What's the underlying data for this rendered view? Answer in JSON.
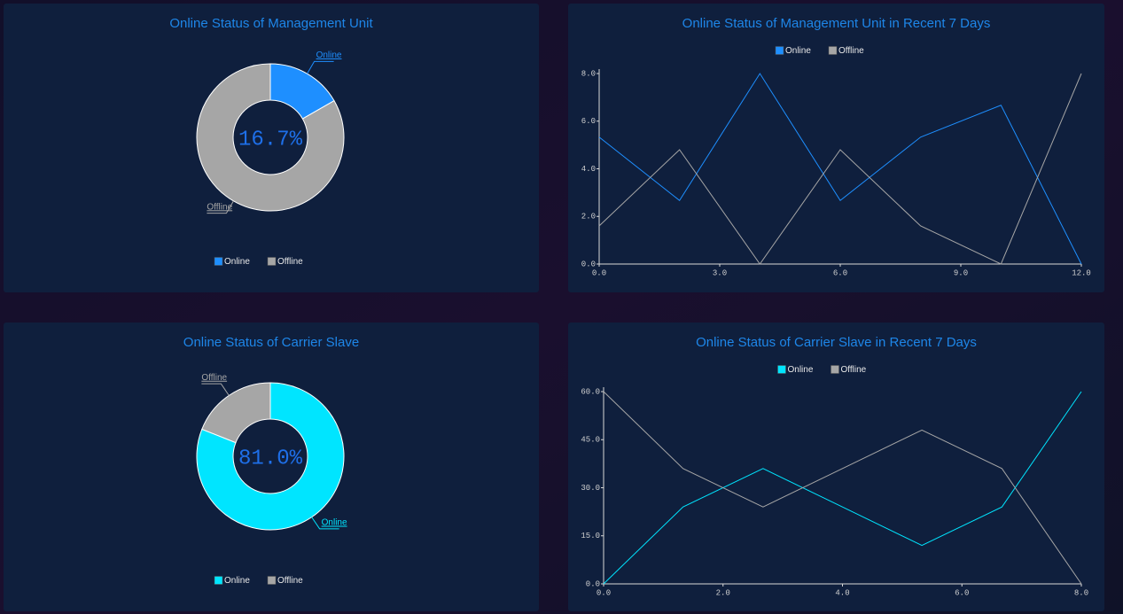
{
  "chart_data": [
    {
      "type": "pie",
      "title": "Online Status of Management Unit",
      "categories": [
        "Online",
        "Offline"
      ],
      "values": [
        16.7,
        83.3
      ],
      "colors": [
        "#1e8fff",
        "#a6a6a6"
      ],
      "center_label": "16.7%",
      "label_color": "#1e6fe8"
    },
    {
      "type": "line",
      "title": "Online Status of Management Unit in Recent 7 Days",
      "x": [
        0,
        2,
        4,
        6,
        8,
        10,
        12
      ],
      "series": [
        {
          "name": "Online",
          "color": "#1e8fff",
          "values": [
            5.33,
            2.67,
            8,
            2.67,
            5.33,
            6.67,
            0
          ]
        },
        {
          "name": "Offline",
          "color": "#a6a6a6",
          "values": [
            1.6,
            4.8,
            0,
            4.8,
            1.6,
            0,
            8
          ]
        }
      ],
      "xlim": [
        0,
        12
      ],
      "ylim": [
        0,
        8
      ],
      "xticks": [
        {
          "value": 0,
          "label": "0.0"
        },
        {
          "value": 3,
          "label": "3.0"
        },
        {
          "value": 6,
          "label": "6.0"
        },
        {
          "value": 9,
          "label": "9.0"
        },
        {
          "value": 12,
          "label": "12.0"
        }
      ],
      "yticks": [
        {
          "value": 0,
          "label": "0.0"
        },
        {
          "value": 2,
          "label": "2.0"
        },
        {
          "value": 4,
          "label": "4.0"
        },
        {
          "value": 6,
          "label": "6.0"
        },
        {
          "value": 8,
          "label": "8.0"
        }
      ]
    },
    {
      "type": "pie",
      "title": "Online Status of Carrier  Slave",
      "categories": [
        "Online",
        "Offline"
      ],
      "values": [
        81.0,
        19.0
      ],
      "colors": [
        "#00e5ff",
        "#a6a6a6"
      ],
      "center_label": "81.0%",
      "label_color": "#1e6fe8"
    },
    {
      "type": "line",
      "title": "Online Status of Carrier  Slave in Recent 7 Days",
      "x": [
        0,
        1.33,
        2.67,
        4,
        5.33,
        6.67,
        8
      ],
      "series": [
        {
          "name": "Online",
          "color": "#00e5ff",
          "values": [
            0,
            24,
            36,
            24,
            12,
            24,
            60
          ]
        },
        {
          "name": "Offline",
          "color": "#a6a6a6",
          "values": [
            60,
            36,
            24,
            36,
            48,
            36,
            0
          ]
        }
      ],
      "xlim": [
        0,
        8
      ],
      "ylim": [
        0,
        60
      ],
      "xticks": [
        {
          "value": 0,
          "label": "0.0"
        },
        {
          "value": 2,
          "label": "2.0"
        },
        {
          "value": 4,
          "label": "4.0"
        },
        {
          "value": 6,
          "label": "6.0"
        },
        {
          "value": 8,
          "label": "8.0"
        }
      ],
      "yticks": [
        {
          "value": 0,
          "label": "0.0"
        },
        {
          "value": 15,
          "label": "15.0"
        },
        {
          "value": 30,
          "label": "30.0"
        },
        {
          "value": 45,
          "label": "45.0"
        },
        {
          "value": 60,
          "label": "60.0"
        }
      ]
    }
  ]
}
